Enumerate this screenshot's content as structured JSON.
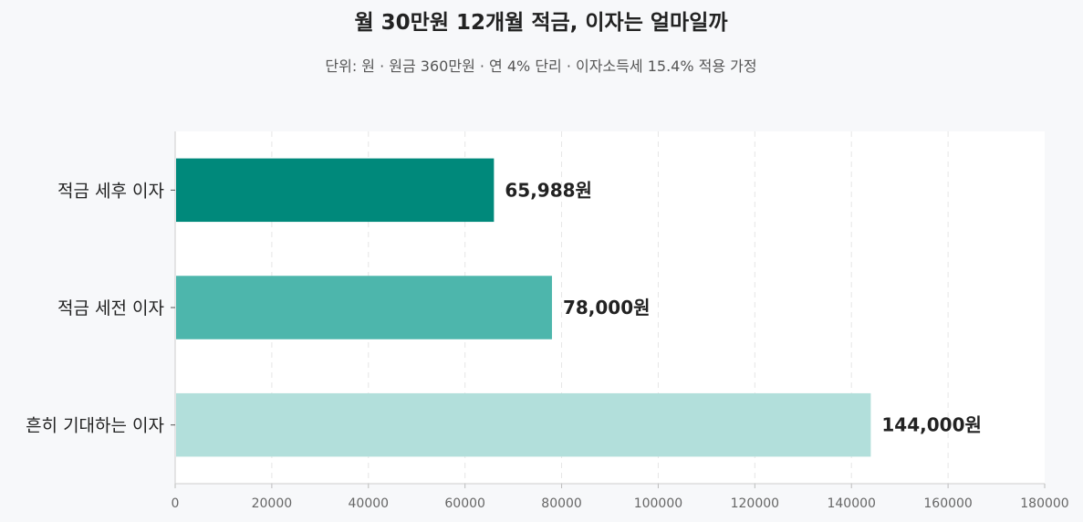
{
  "chart_data": {
    "type": "bar",
    "orientation": "horizontal",
    "title": "월 30만원 12개월 적금, 이자는 얼마일까",
    "subtitle": "단위: 원 · 원금 360만원 · 연 4% 단리 · 이자소득세 15.4% 적용 가정",
    "categories": [
      "적금 세후 이자",
      "적금 세전 이자",
      "흔히 기대하는 이자"
    ],
    "values": [
      65988,
      78000,
      144000
    ],
    "value_labels": [
      "65,988원",
      "78,000원",
      "144,000원"
    ],
    "colors": [
      "#00897b",
      "#4db6ac",
      "#b2dfdb"
    ],
    "xlim": [
      0,
      180000
    ],
    "x_ticks": [
      "0",
      "20000",
      "40000",
      "60000",
      "80000",
      "100000",
      "120000",
      "140000",
      "160000",
      "180000"
    ],
    "grid": "vertical-dashed",
    "xlabel": "",
    "ylabel": ""
  }
}
